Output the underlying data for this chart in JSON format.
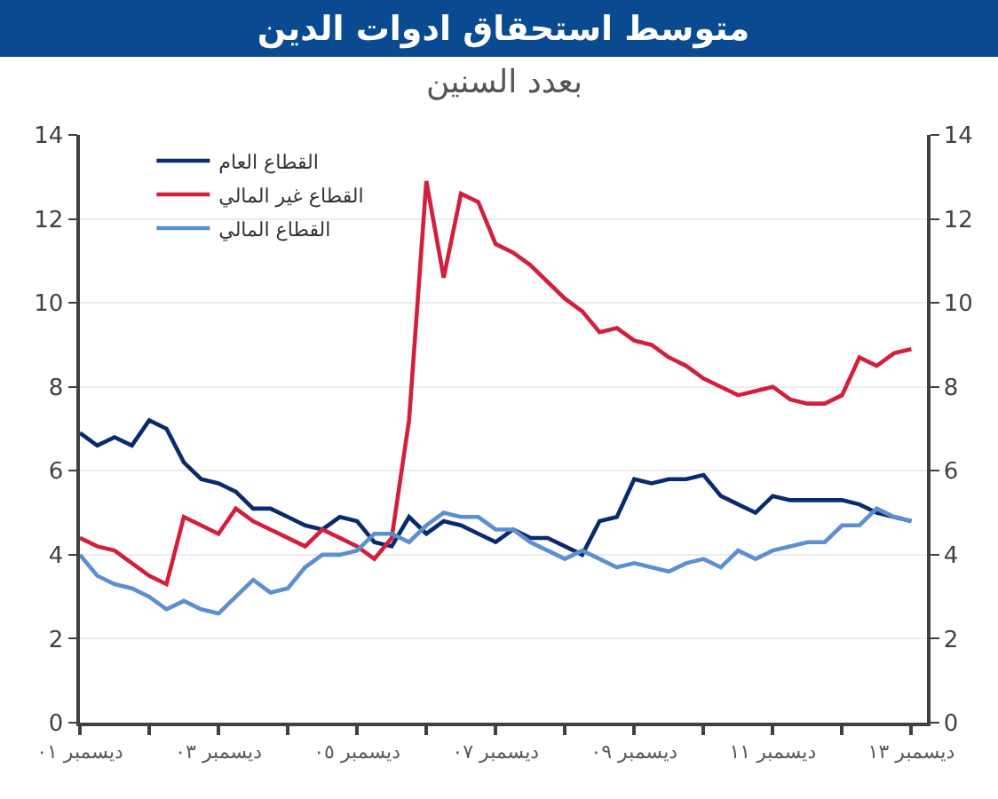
{
  "chart_data": {
    "type": "line",
    "title": "متوسط استحقاق ادوات الدين",
    "subtitle": "بعدد السنين",
    "categories": [
      "ديسمبر ٠١",
      null,
      null,
      null,
      null,
      null,
      null,
      null,
      "ديسمبر ٠٣",
      null,
      null,
      null,
      null,
      null,
      null,
      null,
      "ديسمبر ٠٥",
      null,
      null,
      null,
      null,
      null,
      null,
      null,
      "ديسمبر ٠٧",
      null,
      null,
      null,
      null,
      null,
      null,
      null,
      "ديسمبر ٠٩",
      null,
      null,
      null,
      null,
      null,
      null,
      null,
      "ديسمبر ١١",
      null,
      null,
      null,
      null,
      null,
      null,
      null,
      "ديسمبر ١٣"
    ],
    "series": [
      {
        "name": "القطاع العام",
        "color": "#0a2a6e",
        "values": [
          6.9,
          6.6,
          6.8,
          6.6,
          7.2,
          7.0,
          6.2,
          5.8,
          5.7,
          5.5,
          5.1,
          5.1,
          4.9,
          4.7,
          4.6,
          4.9,
          4.8,
          4.3,
          4.2,
          4.9,
          4.5,
          4.8,
          4.7,
          4.5,
          4.3,
          4.6,
          4.4,
          4.4,
          4.2,
          4.0,
          4.8,
          4.9,
          5.8,
          5.7,
          5.8,
          5.8,
          5.9,
          5.4,
          5.2,
          5.0,
          5.4,
          5.3,
          5.3,
          5.3,
          5.3,
          5.2,
          5.0,
          4.9,
          4.8
        ]
      },
      {
        "name": "القطاع غير المالي",
        "color": "#d21f3c",
        "values": [
          4.4,
          4.2,
          4.1,
          3.8,
          3.5,
          3.3,
          4.9,
          4.7,
          4.5,
          5.1,
          4.8,
          4.6,
          4.4,
          4.2,
          4.6,
          4.4,
          4.2,
          3.9,
          4.4,
          7.2,
          12.9,
          10.6,
          12.6,
          12.4,
          11.4,
          11.2,
          10.9,
          10.5,
          10.1,
          9.8,
          9.3,
          9.4,
          9.1,
          9.0,
          8.7,
          8.5,
          8.2,
          8.0,
          7.8,
          7.9,
          8.0,
          7.7,
          7.6,
          7.6,
          7.8,
          8.7,
          8.5,
          8.8,
          8.9
        ]
      },
      {
        "name": "القطاع المالي",
        "color": "#5b8fd0",
        "values": [
          4.0,
          3.5,
          3.3,
          3.2,
          3.0,
          2.7,
          2.9,
          2.7,
          2.6,
          3.0,
          3.4,
          3.1,
          3.2,
          3.7,
          4.0,
          4.0,
          4.1,
          4.5,
          4.5,
          4.3,
          4.7,
          5.0,
          4.9,
          4.9,
          4.6,
          4.6,
          4.3,
          4.1,
          3.9,
          4.1,
          3.9,
          3.7,
          3.8,
          3.7,
          3.6,
          3.8,
          3.9,
          3.7,
          4.1,
          3.9,
          4.1,
          4.2,
          4.3,
          4.3,
          4.7,
          4.7,
          5.1,
          4.9,
          4.8
        ]
      }
    ],
    "ylim": [
      0,
      14
    ],
    "yticks": [
      0,
      2,
      4,
      6,
      8,
      10,
      12,
      14
    ],
    "y2lim": [
      0,
      14
    ],
    "y2ticks": [
      0,
      2,
      4,
      6,
      8,
      10,
      12,
      14
    ],
    "grid": "y",
    "legend": "top left"
  }
}
